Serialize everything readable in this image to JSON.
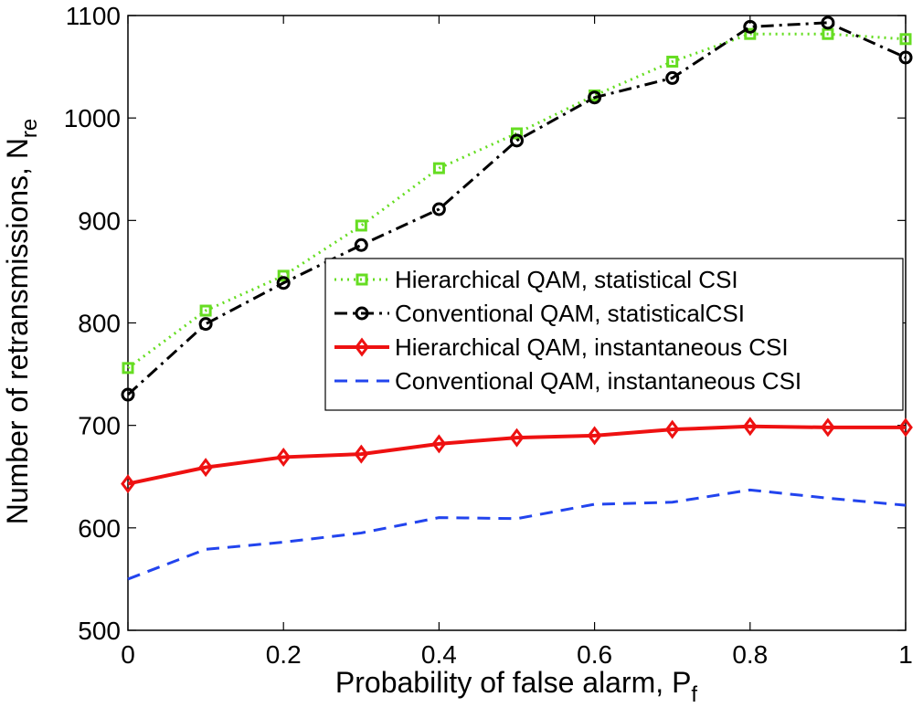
{
  "chart_data": {
    "type": "line",
    "xlabel": "Probability of false alarm, P",
    "xlabel_sub": "f",
    "ylabel": "Number of retransmissions, N",
    "ylabel_sub": "re",
    "xlim": [
      0,
      1
    ],
    "ylim": [
      500,
      1100
    ],
    "xticks": [
      "0",
      "0.2",
      "0.4",
      "0.6",
      "0.8",
      "1"
    ],
    "xtick_values": [
      0,
      0.2,
      0.4,
      0.6,
      0.8,
      1
    ],
    "yticks": [
      "500",
      "600",
      "700",
      "800",
      "900",
      "1000",
      "1100"
    ],
    "ytick_values": [
      500,
      600,
      700,
      800,
      900,
      1000,
      1100
    ],
    "grid": false,
    "legend_position": "center-right",
    "x": [
      0,
      0.1,
      0.2,
      0.3,
      0.4,
      0.5,
      0.6,
      0.7,
      0.8,
      0.9,
      1
    ],
    "series": [
      {
        "name": "Hierarchical QAM, statistical CSI",
        "color": "#66dd22",
        "style": "dotted",
        "marker": "square",
        "values": [
          756,
          812,
          846,
          895,
          951,
          985,
          1022,
          1055,
          1082,
          1082,
          1077
        ]
      },
      {
        "name": "Conventional QAM, statisticalCSI",
        "color": "#000000",
        "style": "dashdot",
        "marker": "circle",
        "values": [
          730,
          799,
          839,
          876,
          911,
          978,
          1020,
          1039,
          1089,
          1093,
          1059
        ]
      },
      {
        "name": "Hierarchical QAM, instantaneous CSI",
        "color": "#ee1111",
        "style": "solid",
        "marker": "diamond",
        "values": [
          643,
          659,
          669,
          672,
          682,
          688,
          690,
          696,
          699,
          698,
          698
        ]
      },
      {
        "name": "Conventional QAM, instantaneous CSI",
        "color": "#2244ee",
        "style": "dashed",
        "marker": "none",
        "values": [
          550,
          579,
          586,
          595,
          610,
          609,
          623,
          625,
          637,
          629,
          622
        ]
      }
    ]
  }
}
